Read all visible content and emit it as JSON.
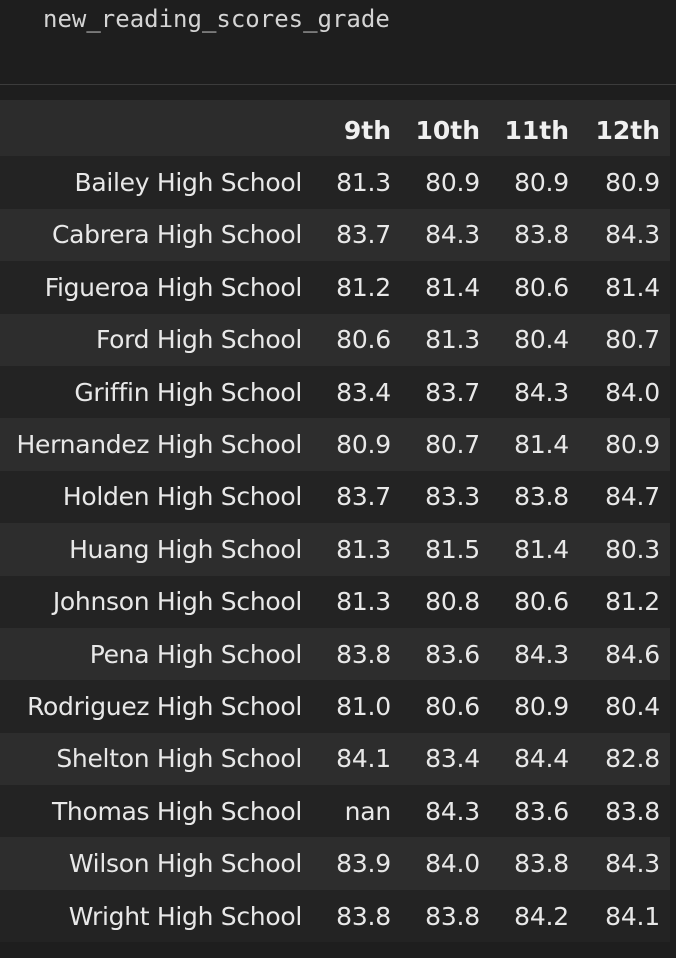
{
  "code_cell": {
    "source": "new_reading_scores_grade"
  },
  "table": {
    "columns": [
      "9th",
      "10th",
      "11th",
      "12th"
    ],
    "rows": [
      {
        "school": "Bailey High School",
        "values": [
          "81.3",
          "80.9",
          "80.9",
          "80.9"
        ]
      },
      {
        "school": "Cabrera High School",
        "values": [
          "83.7",
          "84.3",
          "83.8",
          "84.3"
        ]
      },
      {
        "school": "Figueroa High School",
        "values": [
          "81.2",
          "81.4",
          "80.6",
          "81.4"
        ]
      },
      {
        "school": "Ford High School",
        "values": [
          "80.6",
          "81.3",
          "80.4",
          "80.7"
        ]
      },
      {
        "school": "Griffin High School",
        "values": [
          "83.4",
          "83.7",
          "84.3",
          "84.0"
        ]
      },
      {
        "school": "Hernandez High School",
        "values": [
          "80.9",
          "80.7",
          "81.4",
          "80.9"
        ]
      },
      {
        "school": "Holden High School",
        "values": [
          "83.7",
          "83.3",
          "83.8",
          "84.7"
        ]
      },
      {
        "school": "Huang High School",
        "values": [
          "81.3",
          "81.5",
          "81.4",
          "80.3"
        ]
      },
      {
        "school": "Johnson High School",
        "values": [
          "81.3",
          "80.8",
          "80.6",
          "81.2"
        ]
      },
      {
        "school": "Pena High School",
        "values": [
          "83.8",
          "83.6",
          "84.3",
          "84.6"
        ]
      },
      {
        "school": "Rodriguez High School",
        "values": [
          "81.0",
          "80.6",
          "80.9",
          "80.4"
        ]
      },
      {
        "school": "Shelton High School",
        "values": [
          "84.1",
          "83.4",
          "84.4",
          "82.8"
        ]
      },
      {
        "school": "Thomas High School",
        "values": [
          "nan",
          "84.3",
          "83.6",
          "83.8"
        ]
      },
      {
        "school": "Wilson High School",
        "values": [
          "83.9",
          "84.0",
          "83.8",
          "84.3"
        ]
      },
      {
        "school": "Wright High School",
        "values": [
          "83.8",
          "83.8",
          "84.2",
          "84.1"
        ]
      }
    ]
  }
}
